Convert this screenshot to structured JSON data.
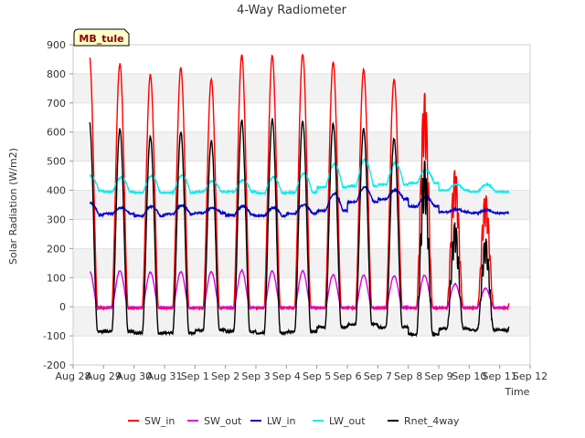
{
  "chart_data": {
    "type": "line",
    "title": "4-Way Radiometer",
    "xlabel": "Time",
    "ylabel": "Solar Radiation (W/m2)",
    "site_label": "MB_tule",
    "ylim": [
      -200,
      900
    ],
    "xlim": [
      0,
      15
    ],
    "y_ticks": [
      -200,
      -100,
      0,
      100,
      200,
      300,
      400,
      500,
      600,
      700,
      800,
      900
    ],
    "x_ticks": [
      {
        "pos": 0,
        "label": "Aug 28"
      },
      {
        "pos": 1,
        "label": "Aug 29"
      },
      {
        "pos": 2,
        "label": "Aug 30"
      },
      {
        "pos": 3,
        "label": "Aug 31"
      },
      {
        "pos": 4,
        "label": "Sep 1"
      },
      {
        "pos": 5,
        "label": "Sep 2"
      },
      {
        "pos": 6,
        "label": "Sep 3"
      },
      {
        "pos": 7,
        "label": "Sep 4"
      },
      {
        "pos": 8,
        "label": "Sep 5"
      },
      {
        "pos": 9,
        "label": "Sep 6"
      },
      {
        "pos": 10,
        "label": "Sep 7"
      },
      {
        "pos": 11,
        "label": "Sep 8"
      },
      {
        "pos": 12,
        "label": "Sep 9"
      },
      {
        "pos": 13,
        "label": "Sep 10"
      },
      {
        "pos": 14,
        "label": "Sep 11"
      },
      {
        "pos": 15,
        "label": "Sep 12"
      }
    ],
    "data_start_day": 0.55,
    "data_end_day": 14.3,
    "daily": [
      {
        "day": 0,
        "sw_in": 865,
        "sw_out": 125,
        "lw_in_base": 315,
        "lw_in_peak": 355,
        "lw_out_base": 398,
        "lw_out_peak": 450,
        "rnet_peak": 635,
        "rnet_night": -85
      },
      {
        "day": 1,
        "sw_in": 838,
        "sw_out": 125,
        "lw_in_base": 320,
        "lw_in_peak": 340,
        "lw_out_base": 395,
        "lw_out_peak": 445,
        "rnet_peak": 610,
        "rnet_night": -85
      },
      {
        "day": 2,
        "sw_in": 800,
        "sw_out": 120,
        "lw_in_base": 312,
        "lw_in_peak": 345,
        "lw_out_base": 392,
        "lw_out_peak": 450,
        "rnet_peak": 585,
        "rnet_night": -90
      },
      {
        "day": 3,
        "sw_in": 825,
        "sw_out": 122,
        "lw_in_base": 318,
        "lw_in_peak": 348,
        "lw_out_base": 392,
        "lw_out_peak": 452,
        "rnet_peak": 600,
        "rnet_night": -90
      },
      {
        "day": 4,
        "sw_in": 785,
        "sw_out": 122,
        "lw_in_base": 322,
        "lw_in_peak": 340,
        "lw_out_base": 395,
        "lw_out_peak": 432,
        "rnet_peak": 570,
        "rnet_night": -80
      },
      {
        "day": 5,
        "sw_in": 868,
        "sw_out": 127,
        "lw_in_base": 315,
        "lw_in_peak": 345,
        "lw_out_base": 395,
        "lw_out_peak": 435,
        "rnet_peak": 640,
        "rnet_night": -85
      },
      {
        "day": 6,
        "sw_in": 865,
        "sw_out": 125,
        "lw_in_base": 312,
        "lw_in_peak": 340,
        "lw_out_base": 390,
        "lw_out_peak": 445,
        "rnet_peak": 645,
        "rnet_night": -90
      },
      {
        "day": 7,
        "sw_in": 872,
        "sw_out": 125,
        "lw_in_base": 320,
        "lw_in_peak": 350,
        "lw_out_base": 392,
        "lw_out_peak": 458,
        "rnet_peak": 638,
        "rnet_night": -85
      },
      {
        "day": 8,
        "sw_in": 845,
        "sw_out": 112,
        "lw_in_base": 330,
        "lw_in_peak": 388,
        "lw_out_base": 410,
        "lw_out_peak": 490,
        "rnet_peak": 630,
        "rnet_night": -70
      },
      {
        "day": 9,
        "sw_in": 818,
        "sw_out": 110,
        "lw_in_base": 360,
        "lw_in_peak": 410,
        "lw_out_base": 415,
        "lw_out_peak": 505,
        "rnet_peak": 610,
        "rnet_night": -60
      },
      {
        "day": 10,
        "sw_in": 785,
        "sw_out": 108,
        "lw_in_base": 370,
        "lw_in_peak": 400,
        "lw_out_base": 420,
        "lw_out_peak": 495,
        "rnet_peak": 578,
        "rnet_night": -70
      },
      {
        "day": 11,
        "sw_in": 700,
        "sw_out": 110,
        "lw_in_base": 345,
        "lw_in_peak": 378,
        "lw_out_base": 425,
        "lw_out_peak": 470,
        "rnet_peak": 470,
        "rnet_night": -95
      },
      {
        "day": 12,
        "sw_in": 450,
        "sw_out": 80,
        "lw_in_base": 325,
        "lw_in_peak": 335,
        "lw_out_base": 400,
        "lw_out_peak": 420,
        "rnet_peak": 270,
        "rnet_night": -75
      },
      {
        "day": 13,
        "sw_in": 370,
        "sw_out": 65,
        "lw_in_base": 322,
        "lw_in_peak": 332,
        "lw_out_base": 395,
        "lw_out_peak": 420,
        "rnet_peak": 220,
        "rnet_night": -80
      }
    ],
    "series": [
      {
        "name": "SW_in",
        "key": "sw_in",
        "color": "#ff0000"
      },
      {
        "name": "SW_out",
        "key": "sw_out",
        "color": "#dd00dd"
      },
      {
        "name": "LW_in",
        "key": "lw_in",
        "color": "#0000cc"
      },
      {
        "name": "LW_out",
        "key": "lw_out",
        "color": "#00eeee"
      },
      {
        "name": "Rnet_4way",
        "key": "rnet",
        "color": "#000000"
      }
    ]
  }
}
